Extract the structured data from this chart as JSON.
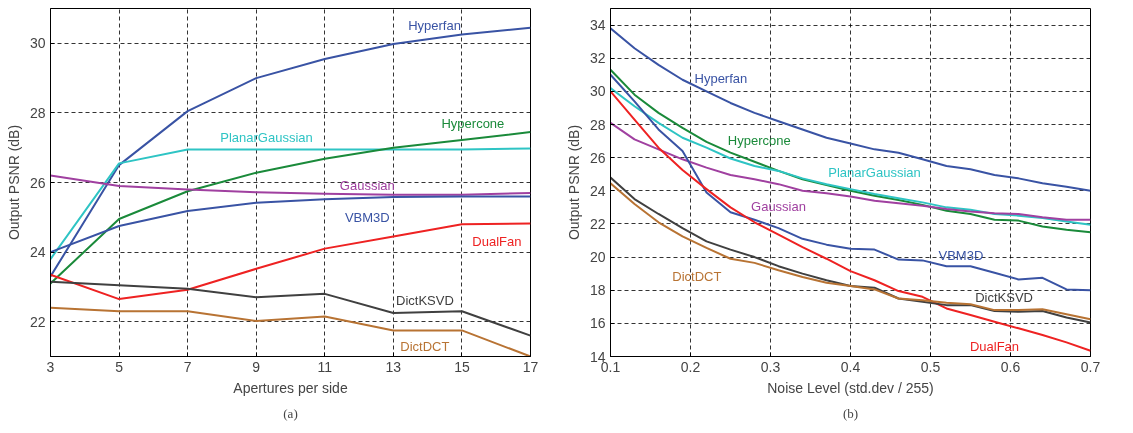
{
  "chart_data": [
    {
      "type": "line",
      "xlabel": "Apertures per side",
      "ylabel": "Output PSNR (dB)",
      "annotations": [
        "(a)"
      ],
      "grid": true,
      "line_style": "solid",
      "marker": "none",
      "x": [
        3,
        5,
        7,
        9,
        11,
        13,
        15,
        17
      ],
      "xlim": [
        3,
        17
      ],
      "xticks": [
        3,
        5,
        7,
        9,
        11,
        13,
        15,
        17
      ],
      "ylim": [
        21,
        31
      ],
      "yticks": [
        22,
        24,
        26,
        28,
        30
      ],
      "series": [
        {
          "name": "Hyperfan",
          "color": "#3953a4",
          "values": [
            23.3,
            26.5,
            28.05,
            29.0,
            29.55,
            29.98,
            30.25,
            30.45
          ]
        },
        {
          "name": "PlanarGaussian",
          "color": "#2ec4c4",
          "values": [
            23.8,
            26.55,
            26.95,
            26.95,
            26.95,
            26.95,
            26.95,
            26.98
          ]
        },
        {
          "name": "Hypercone",
          "color": "#1a8a3a",
          "values": [
            23.1,
            24.95,
            25.75,
            26.28,
            26.68,
            27.0,
            27.22,
            27.45
          ]
        },
        {
          "name": "Gaussian",
          "color": "#a040a0",
          "values": [
            26.2,
            25.9,
            25.8,
            25.72,
            25.68,
            25.65,
            25.65,
            25.7
          ]
        },
        {
          "name": "VBM3D",
          "color": "#3953a4",
          "values": [
            24.0,
            24.75,
            25.18,
            25.42,
            25.52,
            25.58,
            25.6,
            25.6
          ]
        },
        {
          "name": "DualFan",
          "color": "#ee2222",
          "values": [
            23.35,
            22.65,
            22.92,
            23.52,
            24.1,
            24.45,
            24.8,
            24.82
          ]
        },
        {
          "name": "DictKSVD",
          "color": "#404040",
          "values": [
            23.15,
            23.05,
            22.95,
            22.7,
            22.8,
            22.25,
            22.3,
            21.6
          ]
        },
        {
          "name": "DictDCT",
          "color": "#b87333",
          "values": [
            22.4,
            22.3,
            22.3,
            22.02,
            22.15,
            21.75,
            21.75,
            21.0
          ]
        }
      ]
    },
    {
      "type": "line",
      "xlabel": "Noise Level (std.dev / 255)",
      "ylabel": "Output PSNR (dB)",
      "annotations": [
        "(b)"
      ],
      "grid": true,
      "line_style": "solid",
      "marker": "none",
      "x": [
        0.1,
        0.13,
        0.16,
        0.19,
        0.22,
        0.25,
        0.28,
        0.31,
        0.34,
        0.37,
        0.4,
        0.43,
        0.46,
        0.49,
        0.52,
        0.55,
        0.58,
        0.61,
        0.64,
        0.67,
        0.7
      ],
      "xlim": [
        0.1,
        0.7
      ],
      "xticks": [
        0.1,
        0.2,
        0.3,
        0.4,
        0.5,
        0.6,
        0.7
      ],
      "ylim": [
        14,
        35
      ],
      "yticks": [
        14,
        16,
        18,
        20,
        22,
        24,
        26,
        28,
        30,
        32,
        34
      ],
      "series": [
        {
          "name": "Hyperfan",
          "color": "#3953a4",
          "values": [
            33.8,
            32.6,
            31.6,
            30.7,
            30.0,
            29.3,
            28.7,
            28.2,
            27.7,
            27.2,
            26.85,
            26.5,
            26.3,
            25.9,
            25.5,
            25.3,
            24.95,
            24.75,
            24.45,
            24.25,
            24.0
          ]
        },
        {
          "name": "Hypercone",
          "color": "#1a8a3a",
          "values": [
            31.3,
            29.8,
            28.7,
            27.8,
            26.95,
            26.3,
            25.75,
            25.2,
            24.7,
            24.35,
            24.0,
            23.7,
            23.45,
            23.15,
            22.8,
            22.6,
            22.25,
            22.2,
            21.85,
            21.65,
            21.5
          ]
        },
        {
          "name": "PlanarGaussian",
          "color": "#2ec4c4",
          "values": [
            30.2,
            29.1,
            28.1,
            27.2,
            26.6,
            25.95,
            25.5,
            25.2,
            24.75,
            24.4,
            24.1,
            23.8,
            23.55,
            23.3,
            23.0,
            22.85,
            22.6,
            22.5,
            22.35,
            22.15,
            21.95
          ]
        },
        {
          "name": "Gaussian",
          "color": "#a040a0",
          "values": [
            28.1,
            27.1,
            26.5,
            25.9,
            25.4,
            24.95,
            24.7,
            24.4,
            24.0,
            23.85,
            23.65,
            23.4,
            23.25,
            23.1,
            22.9,
            22.75,
            22.65,
            22.6,
            22.4,
            22.25,
            22.25
          ]
        },
        {
          "name": "VBM3D",
          "color": "#3953a4",
          "values": [
            31.0,
            29.4,
            27.7,
            26.4,
            23.9,
            22.7,
            22.25,
            21.75,
            21.1,
            20.75,
            20.5,
            20.45,
            19.85,
            19.8,
            19.45,
            19.45,
            19.05,
            18.65,
            18.75,
            18.05,
            18.0
          ]
        },
        {
          "name": "DualFan",
          "color": "#ee2222",
          "values": [
            30.0,
            28.3,
            26.6,
            25.25,
            24.1,
            23.0,
            22.1,
            21.35,
            20.6,
            19.9,
            19.15,
            18.6,
            17.95,
            17.6,
            16.9,
            16.5,
            16.1,
            15.7,
            15.3,
            14.85,
            14.35
          ]
        },
        {
          "name": "DictKSVD",
          "color": "#404040",
          "values": [
            24.8,
            23.5,
            22.6,
            21.75,
            20.95,
            20.45,
            20.0,
            19.45,
            19.0,
            18.6,
            18.25,
            18.15,
            17.5,
            17.3,
            17.1,
            17.1,
            16.75,
            16.7,
            16.75,
            16.35,
            16.05
          ]
        },
        {
          "name": "DictDCT",
          "color": "#b87333",
          "values": [
            24.45,
            23.2,
            22.1,
            21.25,
            20.55,
            19.9,
            19.65,
            19.2,
            18.8,
            18.45,
            18.25,
            18.05,
            17.5,
            17.4,
            17.25,
            17.15,
            16.8,
            16.8,
            16.85,
            16.55,
            16.25
          ]
        }
      ]
    }
  ]
}
